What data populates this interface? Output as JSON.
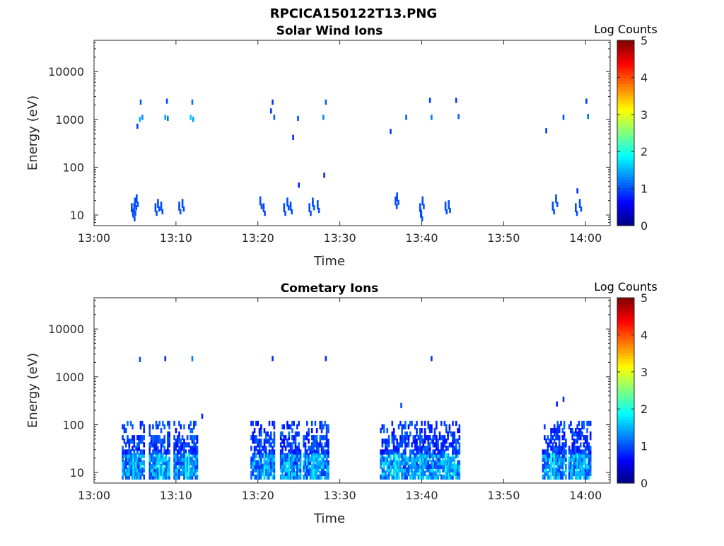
{
  "figure_title": "RPCICA150122T13.PNG",
  "chart_data": [
    {
      "type": "heatmap",
      "title": "Solar Wind Ions",
      "xlabel": "Time",
      "ylabel": "Energy (eV)",
      "xticks": [
        "13:00",
        "13:10",
        "13:20",
        "13:30",
        "13:40",
        "13:50",
        "14:00"
      ],
      "xlim_minutes": [
        0,
        63
      ],
      "ylim": [
        6,
        45000
      ],
      "yscale": "log",
      "yticks": [
        10,
        100,
        1000,
        10000
      ],
      "ytick_labels": [
        "10",
        "100",
        "1000",
        "10000"
      ],
      "colorbar": {
        "label": "Log Counts",
        "range": [
          0,
          5
        ],
        "ticks": [
          "0",
          "1",
          "2",
          "3",
          "4",
          "5"
        ],
        "colormap": "jet"
      },
      "cells": [
        [
          4.6,
          13,
          1
        ],
        [
          4.9,
          13,
          1
        ],
        [
          5.0,
          17,
          1
        ],
        [
          5.2,
          20,
          1
        ],
        [
          4.8,
          10,
          1
        ],
        [
          5.6,
          1000,
          1.5
        ],
        [
          5.9,
          1100,
          1.3
        ],
        [
          5.7,
          2300,
          1.1
        ],
        [
          5.3,
          720,
          0.9
        ],
        [
          7.5,
          13,
          1
        ],
        [
          7.8,
          16,
          1
        ],
        [
          8.2,
          14,
          1
        ],
        [
          8.7,
          1100,
          1.4
        ],
        [
          9.0,
          1050,
          1.2
        ],
        [
          8.9,
          2400,
          1.0
        ],
        [
          10.4,
          14,
          1
        ],
        [
          10.8,
          16,
          1
        ],
        [
          11.8,
          1100,
          1.6
        ],
        [
          12.1,
          1000,
          1.4
        ],
        [
          12.0,
          2300,
          1.2
        ],
        [
          20.3,
          18,
          1
        ],
        [
          20.7,
          13,
          1
        ],
        [
          21.8,
          2300,
          0.9
        ],
        [
          22.0,
          1100,
          1.1
        ],
        [
          21.6,
          1500,
          0.9
        ],
        [
          23.2,
          13,
          1
        ],
        [
          23.6,
          17,
          1
        ],
        [
          24.0,
          14,
          1
        ],
        [
          24.3,
          420,
          0.8
        ],
        [
          24.9,
          1050,
          1.0
        ],
        [
          25.0,
          42,
          0.8
        ],
        [
          26.3,
          13,
          1
        ],
        [
          26.7,
          17,
          1
        ],
        [
          27.3,
          15,
          1
        ],
        [
          28.0,
          1100,
          1.3
        ],
        [
          28.3,
          2300,
          1.1
        ],
        [
          28.1,
          68,
          0.8
        ],
        [
          36.2,
          560,
          0.9
        ],
        [
          36.8,
          18,
          1
        ],
        [
          37.0,
          22,
          1
        ],
        [
          38.1,
          1100,
          1.1
        ],
        [
          39.8,
          13,
          1
        ],
        [
          40.1,
          18,
          1
        ],
        [
          39.9,
          10,
          1
        ],
        [
          41.2,
          1100,
          1.2
        ],
        [
          41.0,
          2500,
          0.9
        ],
        [
          42.9,
          14,
          1
        ],
        [
          43.3,
          15,
          1
        ],
        [
          44.2,
          2500,
          0.9
        ],
        [
          44.5,
          1150,
          1.1
        ],
        [
          55.2,
          580,
          0.9
        ],
        [
          56.0,
          14,
          1
        ],
        [
          56.4,
          20,
          1
        ],
        [
          57.3,
          1100,
          1.0
        ],
        [
          58.8,
          13,
          1
        ],
        [
          59.3,
          16,
          1
        ],
        [
          59.0,
          32,
          0.8
        ],
        [
          60.3,
          1150,
          1.2
        ],
        [
          60.1,
          2400,
          0.9
        ]
      ]
    },
    {
      "type": "heatmap",
      "title": "Cometary Ions",
      "xlabel": "Time",
      "ylabel": "Energy (eV)",
      "xticks": [
        "13:00",
        "13:10",
        "13:20",
        "13:30",
        "13:40",
        "13:50",
        "14:00"
      ],
      "xlim_minutes": [
        0,
        63
      ],
      "ylim": [
        6,
        45000
      ],
      "yscale": "log",
      "yticks": [
        10,
        100,
        1000,
        10000
      ],
      "ytick_labels": [
        "10",
        "100",
        "1000",
        "10000"
      ],
      "colorbar": {
        "label": "Log Counts",
        "range": [
          0,
          5
        ],
        "ticks": [
          "0",
          "1",
          "2",
          "3",
          "4",
          "5"
        ],
        "colormap": "jet"
      },
      "clusters": [
        [
          3.5,
          6.2
        ],
        [
          6.8,
          9.2
        ],
        [
          9.8,
          12.6
        ],
        [
          19.2,
          22.0
        ],
        [
          22.8,
          25.3
        ],
        [
          25.6,
          28.6
        ],
        [
          35.0,
          38.8
        ],
        [
          38.8,
          41.6
        ],
        [
          41.6,
          44.8
        ],
        [
          54.8,
          57.8
        ],
        [
          58.0,
          60.8
        ]
      ],
      "high_columns": [
        [
          4.8,
          1.8
        ],
        [
          8.0,
          2.0
        ],
        [
          11.2,
          2.1
        ],
        [
          20.8,
          1.9
        ],
        [
          23.8,
          1.8
        ],
        [
          26.8,
          1.8
        ],
        [
          36.8,
          2.0
        ],
        [
          39.8,
          1.8
        ],
        [
          42.9,
          1.9
        ],
        [
          55.8,
          2.0
        ],
        [
          59.0,
          1.8
        ]
      ],
      "isolated": [
        [
          5.6,
          2300,
          1.0
        ],
        [
          8.7,
          2400,
          0.8
        ],
        [
          12.0,
          2400,
          1.2
        ],
        [
          21.8,
          2400,
          0.8
        ],
        [
          28.3,
          2400,
          0.8
        ],
        [
          41.2,
          2400,
          0.8
        ],
        [
          37.5,
          250,
          1.0
        ],
        [
          57.3,
          340,
          0.8
        ],
        [
          56.5,
          270,
          0.8
        ],
        [
          13.2,
          150,
          0.8
        ]
      ]
    }
  ]
}
